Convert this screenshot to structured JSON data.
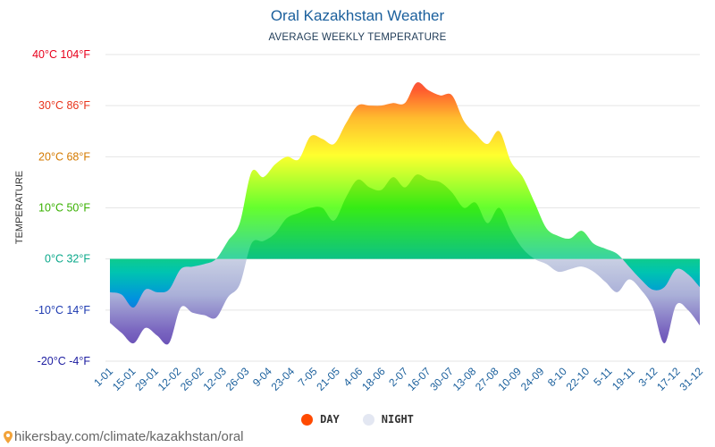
{
  "title": "Oral Kazakhstan Weather",
  "subtitle": "AVERAGE WEEKLY TEMPERATURE",
  "source": "hikersbay.com/climate/kazakhstan/oral",
  "colors": {
    "night_band": "#c5cde2",
    "legend_day": "#ff4a00",
    "legend_night": "#e3e7f2",
    "grid": "#e5e5e5",
    "tick_text": "#1a5f9c"
  },
  "chart_data": {
    "type": "area",
    "title": "Oral Kazakhstan Weather",
    "subtitle": "AVERAGE WEEKLY TEMPERATURE",
    "ylabel": "TEMPERATURE",
    "ylim": [
      -20,
      40
    ],
    "yticks": [
      {
        "value": 40,
        "label": "40°C 104°F",
        "color": "#e8001c"
      },
      {
        "value": 30,
        "label": "30°C 86°F",
        "color": "#e8341c"
      },
      {
        "value": 20,
        "label": "20°C 68°F",
        "color": "#d47a00"
      },
      {
        "value": 10,
        "label": "10°C 50°F",
        "color": "#38b000"
      },
      {
        "value": 0,
        "label": "0°C 32°F",
        "color": "#0aa88a"
      },
      {
        "value": -10,
        "label": "-10°C 14°F",
        "color": "#1c39b0"
      },
      {
        "value": -20,
        "label": "-20°C -4°F",
        "color": "#1c1ca0"
      }
    ],
    "x_labels": [
      "1-01",
      "15-01",
      "29-01",
      "12-02",
      "26-02",
      "12-03",
      "26-03",
      "9-04",
      "23-04",
      "7-05",
      "21-05",
      "4-06",
      "18-06",
      "2-07",
      "16-07",
      "30-07",
      "13-08",
      "27-08",
      "10-09",
      "24-09",
      "8-10",
      "22-10",
      "5-11",
      "19-11",
      "3-12",
      "17-12",
      "31-12"
    ],
    "series": [
      {
        "name": "DAY",
        "values": [
          -6.5,
          -7.0,
          -9.5,
          -6.0,
          -6.5,
          -6.0,
          -2.0,
          -1.5,
          -1.0,
          0.0,
          3.5,
          7.0,
          17.0,
          16.0,
          18.5,
          20.0,
          19.5,
          24.0,
          23.5,
          22.5,
          26.5,
          30.0,
          30.0,
          30.0,
          30.5,
          30.5,
          34.5,
          33.0,
          32.0,
          32.0,
          27.0,
          24.5,
          22.5,
          25.0,
          19.0,
          16.0,
          11.0,
          6.0,
          4.5,
          4.0,
          5.5,
          3.0,
          2.0,
          1.0,
          -1.5,
          -4.0,
          -6.0,
          -5.5,
          -2.0,
          -3.0,
          -5.5
        ]
      },
      {
        "name": "NIGHT",
        "values": [
          -12.5,
          -14.5,
          -16.5,
          -13.5,
          -15.0,
          -16.5,
          -9.5,
          -10.5,
          -11.0,
          -11.5,
          -7.5,
          -5.0,
          3.0,
          3.5,
          5.0,
          8.0,
          9.0,
          10.0,
          10.0,
          7.5,
          12.0,
          15.5,
          14.0,
          13.5,
          16.0,
          14.0,
          16.5,
          15.5,
          15.0,
          13.0,
          10.0,
          11.0,
          7.0,
          10.0,
          5.5,
          2.0,
          0.0,
          -1.0,
          -2.5,
          -2.0,
          -1.5,
          -2.5,
          -4.5,
          -6.5,
          -4.0,
          -6.0,
          -9.5,
          -16.5,
          -9.0,
          -10.0,
          -13.0
        ]
      }
    ],
    "legend": [
      {
        "name": "DAY",
        "label": "DAY"
      },
      {
        "name": "NIGHT",
        "label": "NIGHT"
      }
    ],
    "legend_position": "bottom-center"
  }
}
